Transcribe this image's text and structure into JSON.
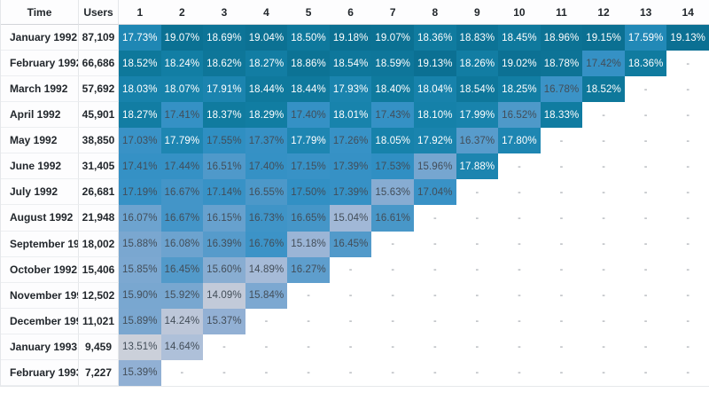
{
  "chart_data": {
    "type": "heatmap",
    "columns": [
      "Time",
      "Users",
      "1",
      "2",
      "3",
      "4",
      "5",
      "6",
      "7",
      "8",
      "9",
      "10",
      "11",
      "12",
      "13",
      "14"
    ],
    "unit": "%",
    "empty_cell": "-",
    "rows": [
      {
        "time": "January 1992",
        "users": "87,109",
        "values": [
          17.73,
          19.07,
          18.69,
          19.04,
          18.5,
          19.18,
          19.07,
          18.36,
          18.83,
          18.45,
          18.96,
          19.15,
          17.59,
          19.13
        ]
      },
      {
        "time": "February 1992",
        "users": "66,686",
        "values": [
          18.52,
          18.24,
          18.62,
          18.27,
          18.86,
          18.54,
          18.59,
          19.13,
          18.26,
          19.02,
          18.78,
          17.42,
          18.36,
          null
        ]
      },
      {
        "time": "March 1992",
        "users": "57,692",
        "values": [
          18.03,
          18.07,
          17.91,
          18.44,
          18.44,
          17.93,
          18.4,
          18.04,
          18.54,
          18.25,
          16.78,
          18.52,
          null,
          null
        ]
      },
      {
        "time": "April 1992",
        "users": "45,901",
        "values": [
          18.27,
          17.41,
          18.37,
          18.29,
          17.4,
          18.01,
          17.43,
          18.1,
          17.99,
          16.52,
          18.33,
          null,
          null,
          null
        ]
      },
      {
        "time": "May 1992",
        "users": "38,850",
        "values": [
          17.03,
          17.79,
          17.55,
          17.37,
          17.79,
          17.26,
          18.05,
          17.92,
          16.37,
          17.8,
          null,
          null,
          null,
          null
        ]
      },
      {
        "time": "June 1992",
        "users": "31,405",
        "values": [
          17.41,
          17.44,
          16.51,
          17.4,
          17.15,
          17.39,
          17.53,
          15.96,
          17.88,
          null,
          null,
          null,
          null,
          null
        ]
      },
      {
        "time": "July 1992",
        "users": "26,681",
        "values": [
          17.19,
          16.67,
          17.14,
          16.55,
          17.5,
          17.39,
          15.63,
          17.04,
          null,
          null,
          null,
          null,
          null,
          null
        ]
      },
      {
        "time": "August 1992",
        "users": "21,948",
        "values": [
          16.07,
          16.67,
          16.15,
          16.73,
          16.65,
          15.04,
          16.61,
          null,
          null,
          null,
          null,
          null,
          null,
          null
        ]
      },
      {
        "time": "September 1992",
        "users": "18,002",
        "values": [
          15.88,
          16.08,
          16.39,
          16.76,
          15.18,
          16.45,
          null,
          null,
          null,
          null,
          null,
          null,
          null,
          null
        ]
      },
      {
        "time": "October 1992",
        "users": "15,406",
        "values": [
          15.85,
          16.45,
          15.6,
          14.89,
          16.27,
          null,
          null,
          null,
          null,
          null,
          null,
          null,
          null,
          null
        ]
      },
      {
        "time": "November 1992",
        "users": "12,502",
        "values": [
          15.9,
          15.92,
          14.09,
          15.84,
          null,
          null,
          null,
          null,
          null,
          null,
          null,
          null,
          null,
          null
        ]
      },
      {
        "time": "December 1992",
        "users": "11,021",
        "values": [
          15.89,
          14.24,
          15.37,
          null,
          null,
          null,
          null,
          null,
          null,
          null,
          null,
          null,
          null,
          null
        ]
      },
      {
        "time": "January 1993",
        "users": "9,459",
        "values": [
          13.51,
          14.64,
          null,
          null,
          null,
          null,
          null,
          null,
          null,
          null,
          null,
          null,
          null,
          null
        ]
      },
      {
        "time": "February 1993",
        "users": "7,227",
        "values": [
          15.39,
          null,
          null,
          null,
          null,
          null,
          null,
          null,
          null,
          null,
          null,
          null,
          null,
          null
        ]
      }
    ],
    "color_scale": {
      "stops": [
        [
          13.51,
          "#cbd0da"
        ],
        [
          14.09,
          "#c2cad9"
        ],
        [
          14.64,
          "#aec0d9"
        ],
        [
          15.04,
          "#a1b8d7"
        ],
        [
          15.39,
          "#91b0d4"
        ],
        [
          15.63,
          "#87acd2"
        ],
        [
          15.96,
          "#76a6d0"
        ],
        [
          16.27,
          "#5e9ecd"
        ],
        [
          16.55,
          "#4c98c9"
        ],
        [
          16.78,
          "#3b93c7"
        ],
        [
          17.45,
          "#3591c5"
        ],
        [
          17.55,
          "#2f8fc2"
        ],
        [
          17.59,
          "#2289b7"
        ],
        [
          17.8,
          "#1e86b2"
        ],
        [
          18.1,
          "#1581a9"
        ],
        [
          18.4,
          "#0f7a9e"
        ],
        [
          18.7,
          "#0d7497"
        ],
        [
          19.18,
          "#0b7092"
        ]
      ],
      "white_text_threshold": 17.56,
      "white_text_color": "#ffffff",
      "dark_text_color": "#424d58"
    }
  }
}
